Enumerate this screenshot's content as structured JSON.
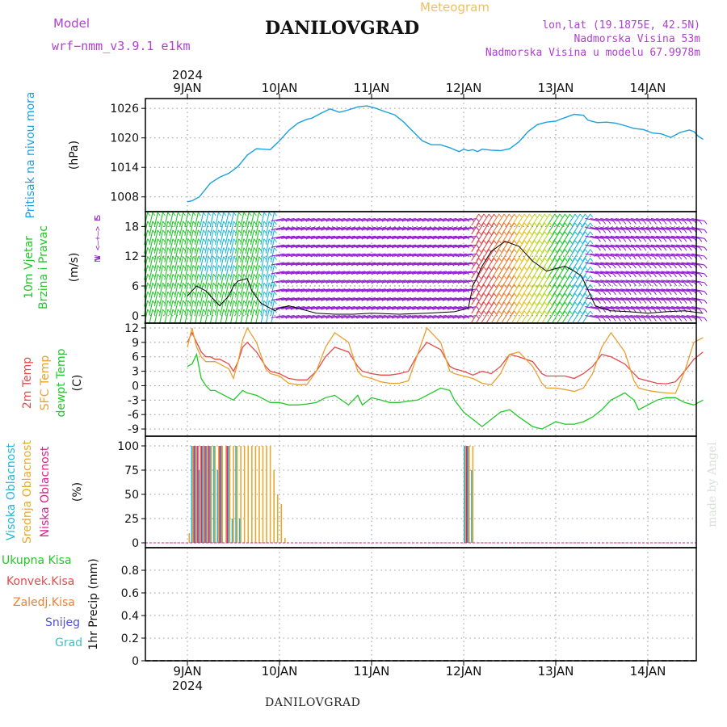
{
  "header": {
    "model_label": "Model",
    "model_name": "wrf−nmm_v3.9.1  e1km",
    "station": "DANILOVGRAD",
    "meteogram": "Meteogram",
    "lonlat": "lon,lat (19.1875E, 42.5N)",
    "elev": "Nadmorska Visina 53m",
    "elev_model": "Nadmorska Visina u modelu 67.9978m",
    "footer_station": "DANILOVGRAD",
    "credit": "made by Angel",
    "year": "2024"
  },
  "colors": {
    "pressure": "#1aa0e0",
    "temp2m": "#e84848",
    "sfc": "#e8a030",
    "dewpt": "#20c828",
    "high_cloud": "#20b8d8",
    "mid_cloud": "#e8a830",
    "low_cloud": "#e0208c",
    "barb_purple": "#9018d0",
    "total_rain": "#20c828",
    "conv_rain": "#e84848",
    "frz_rain": "#f08030",
    "snow": "#5050e0",
    "hail": "#40c0c0"
  },
  "chart_data": [
    {
      "type": "line",
      "panel": "pressure",
      "title": "Pritisak na nivou mora",
      "ylabel": "(hPa)",
      "x_tick_labels": [
        "9JAN",
        "10JAN",
        "11JAN",
        "12JAN",
        "13JAN",
        "14JAN"
      ],
      "ylim": [
        1005,
        1028
      ],
      "yticks": [
        1008,
        1014,
        1020,
        1026
      ],
      "grid": true,
      "series": [
        {
          "x": [
            0,
            0.05,
            0.13,
            0.25,
            0.35,
            0.45,
            0.55,
            0.65,
            0.75,
            0.9,
            1.0,
            1.1,
            1.2,
            1.3,
            1.35,
            1.45,
            1.55,
            1.65,
            1.75,
            1.85,
            1.95,
            2.05,
            2.15,
            2.25,
            2.35,
            2.45,
            2.55,
            2.65,
            2.75,
            2.85,
            2.95,
            3.0,
            3.05,
            3.1,
            3.15,
            3.2,
            3.3,
            3.4,
            3.5,
            3.6,
            3.7,
            3.8,
            3.9,
            4.0,
            4.05,
            4.1,
            4.2,
            4.3,
            4.35,
            4.45,
            4.55,
            4.65,
            4.75,
            4.85,
            4.95,
            5.05,
            5.15,
            5.25,
            5.35,
            5.45,
            5.5,
            5.55,
            5.6
          ],
          "y": [
            1007.0,
            1007.2,
            1008.0,
            1010.8,
            1012.0,
            1012.8,
            1014.2,
            1016.5,
            1017.8,
            1017.6,
            1019.4,
            1021.5,
            1023.0,
            1023.8,
            1024.0,
            1025.0,
            1025.9,
            1025.2,
            1025.7,
            1026.3,
            1026.5,
            1026.0,
            1025.3,
            1024.7,
            1023.2,
            1021.3,
            1019.4,
            1018.6,
            1018.6,
            1018.0,
            1017.2,
            1017.7,
            1017.4,
            1017.6,
            1017.2,
            1017.7,
            1017.5,
            1017.4,
            1017.8,
            1019.2,
            1021.3,
            1022.7,
            1023.2,
            1023.4,
            1023.8,
            1024.1,
            1024.8,
            1024.6,
            1023.6,
            1023.1,
            1023.2,
            1023.0,
            1022.5,
            1021.9,
            1021.7,
            1021.0,
            1020.8,
            1020.1,
            1021.1,
            1021.6,
            1021.3,
            1020.3,
            1019.7
          ]
        }
      ]
    },
    {
      "type": "line",
      "panel": "wind",
      "title": "10m Vjetar Brzina i Pravac",
      "ylabel": "(m/s)",
      "compass": "N / W < — + — > E / S",
      "compass_letters": [
        "N",
        "W",
        "E",
        "S"
      ],
      "ylim": [
        -1.5,
        21
      ],
      "yticks": [
        0,
        6,
        12,
        18
      ],
      "grid": true,
      "series": [
        {
          "name": "speed",
          "x": [
            0,
            0.1,
            0.2,
            0.3,
            0.35,
            0.45,
            0.5,
            0.55,
            0.65,
            0.7,
            0.8,
            0.9,
            0.95,
            1.0,
            1.1,
            1.2,
            1.4,
            1.6,
            1.8,
            2.0,
            2.3,
            2.6,
            2.9,
            3.05,
            3.1,
            3.2,
            3.3,
            3.45,
            3.6,
            3.75,
            3.9,
            4.0,
            4.1,
            4.2,
            4.28,
            4.33,
            4.38,
            4.43,
            4.5,
            4.6,
            4.8,
            5.0,
            5.2,
            5.4,
            5.6
          ],
          "y": [
            4,
            6,
            5,
            3,
            2,
            4,
            6,
            7,
            7.5,
            5,
            2.5,
            1.5,
            1,
            1.5,
            2,
            1.5,
            0.5,
            0.3,
            0.3,
            0.5,
            0.3,
            0.5,
            0.8,
            1.5,
            6,
            10,
            13,
            15,
            14,
            11,
            9,
            9.5,
            10,
            9,
            8,
            6,
            4,
            2,
            1.5,
            1,
            0.8,
            0.5,
            0.8,
            1,
            0.5
          ]
        }
      ],
      "regime_colors": [
        "#1a40d0",
        "#20c828",
        "#9018d0",
        "#e84848",
        "#e8d020",
        "#20b8d8"
      ]
    },
    {
      "type": "line",
      "panel": "temperature",
      "labels": [
        "2m Temp",
        "SFC Temp",
        "dewpt Temp"
      ],
      "ylabel": "(C)",
      "ylim": [
        -10.5,
        13
      ],
      "yticks": [
        -9,
        -6,
        -3,
        0,
        3,
        6,
        9,
        12
      ],
      "grid": true,
      "x": [
        0,
        0.05,
        0.1,
        0.15,
        0.2,
        0.25,
        0.3,
        0.35,
        0.45,
        0.5,
        0.55,
        0.6,
        0.65,
        0.75,
        0.85,
        0.9,
        1.0,
        1.1,
        1.2,
        1.3,
        1.4,
        1.5,
        1.6,
        1.75,
        1.85,
        1.9,
        2.0,
        2.1,
        2.2,
        2.3,
        2.4,
        2.5,
        2.6,
        2.75,
        2.85,
        2.9,
        3.0,
        3.1,
        3.2,
        3.3,
        3.4,
        3.5,
        3.6,
        3.75,
        3.85,
        3.9,
        4.0,
        4.1,
        4.2,
        4.3,
        4.4,
        4.5,
        4.6,
        4.75,
        4.85,
        4.9,
        5.0,
        5.1,
        5.2,
        5.3,
        5.4,
        5.5,
        5.6
      ],
      "series": [
        {
          "name": "2m Temp",
          "y": [
            9,
            11,
            9,
            7,
            6,
            6,
            5.5,
            5.5,
            4.5,
            3,
            5,
            8,
            9,
            7,
            4,
            3,
            2.5,
            1.5,
            1.2,
            1.2,
            3,
            6,
            8,
            7,
            4,
            3,
            2.5,
            2.2,
            2.2,
            2.5,
            3,
            6.5,
            9,
            7.5,
            4,
            3.5,
            3,
            2.2,
            3,
            2.5,
            4,
            6.5,
            6,
            5,
            2.5,
            2,
            2,
            2,
            1.5,
            2.5,
            4,
            6.5,
            6,
            4.5,
            2.5,
            1.5,
            1,
            0.5,
            0.4,
            0.8,
            3,
            5.5,
            7
          ]
        },
        {
          "name": "SFC Temp",
          "y": [
            8,
            12,
            8,
            6,
            5,
            5,
            5,
            4.5,
            3.5,
            1.5,
            5,
            9.5,
            12,
            9,
            3.5,
            2.5,
            2,
            0.5,
            0.2,
            0.3,
            3,
            8,
            11,
            9,
            3,
            2,
            1.5,
            0.8,
            0.5,
            0.5,
            1,
            6.5,
            12,
            9,
            3,
            2.5,
            2,
            1.5,
            0.5,
            0.2,
            2.5,
            6.5,
            7,
            4,
            0.5,
            -0.5,
            -0.5,
            -0.8,
            -1.2,
            -0.5,
            2.5,
            8,
            11,
            7,
            1,
            -0.5,
            -1,
            -1.3,
            -1.5,
            -1.6,
            3,
            9,
            10
          ]
        },
        {
          "name": "dewpt Temp",
          "y": [
            4,
            4.5,
            6.5,
            1.5,
            0,
            -1,
            -1,
            -1.5,
            -2.5,
            -3,
            -2,
            -1,
            -1.5,
            -2,
            -3,
            -3.5,
            -3.5,
            -4,
            -4,
            -3.8,
            -3.5,
            -2.5,
            -2,
            -4,
            -2,
            -4,
            -2.5,
            -3,
            -3.5,
            -3.5,
            -3.2,
            -3,
            -2,
            -0.5,
            -1,
            -3,
            -5.5,
            -7,
            -8.5,
            -7,
            -5.5,
            -5,
            -6.5,
            -8.5,
            -9,
            -8.5,
            -7.5,
            -8,
            -8,
            -7.5,
            -6.5,
            -5,
            -3,
            -1.5,
            -3,
            -5,
            -4,
            -3,
            -2.5,
            -2.5,
            -3.5,
            -4,
            -3
          ]
        }
      ]
    },
    {
      "type": "bar",
      "panel": "clouds",
      "labels": [
        "Visoka Oblacnost",
        "Srednja Oblacnost",
        "Niska Oblacnost"
      ],
      "ylabel": "(%)",
      "ylim": [
        -5,
        110
      ],
      "yticks": [
        0,
        25,
        50,
        75,
        100
      ],
      "grid": true,
      "x": [
        0.02,
        0.06,
        0.1,
        0.14,
        0.18,
        0.22,
        0.26,
        0.3,
        0.34,
        0.38,
        0.42,
        0.46,
        0.5,
        0.54,
        0.58,
        0.62,
        0.66,
        0.7,
        0.74,
        0.78,
        0.82,
        0.86,
        0.9,
        0.94,
        0.98,
        1.02,
        1.06,
        3.02,
        3.06,
        3.1
      ],
      "series": [
        {
          "name": "Visoka Oblacnost",
          "values": [
            0,
            100,
            100,
            75,
            100,
            100,
            100,
            100,
            75,
            100,
            0,
            100,
            25,
            100,
            25,
            0,
            0,
            0,
            0,
            0,
            0,
            0,
            0,
            0,
            0,
            0,
            0,
            100,
            100,
            75
          ]
        },
        {
          "name": "Srednja Oblacnost",
          "values": [
            10,
            100,
            100,
            100,
            100,
            100,
            100,
            100,
            100,
            100,
            100,
            100,
            100,
            100,
            100,
            100,
            100,
            100,
            100,
            100,
            100,
            100,
            100,
            75,
            50,
            40,
            5,
            100,
            100,
            100
          ]
        },
        {
          "name": "Niska Oblacnost",
          "values": [
            0,
            100,
            100,
            100,
            100,
            100,
            0,
            0,
            100,
            0,
            100,
            0,
            0,
            0,
            0,
            0,
            0,
            0,
            0,
            0,
            0,
            0,
            0,
            0,
            0,
            0,
            0,
            100,
            0,
            0
          ]
        }
      ]
    },
    {
      "type": "line",
      "panel": "precipitation",
      "labels": [
        "Ukupna  Kisa",
        "Konvek.Kisa",
        "Zaledj.Kisa",
        "Snijeg",
        "Grad"
      ],
      "ylabel": "1hr Precip (mm)",
      "ylim": [
        0,
        1.0
      ],
      "yticks": [
        0,
        0.2,
        0.4,
        0.6,
        0.8
      ],
      "ytick_labels": [
        "0",
        "0.2",
        "0.4",
        "0.6",
        "0.8"
      ],
      "grid": true,
      "x_tick_labels": [
        "9JAN",
        "10JAN",
        "11JAN",
        "12JAN",
        "13JAN",
        "14JAN"
      ],
      "series": []
    }
  ]
}
